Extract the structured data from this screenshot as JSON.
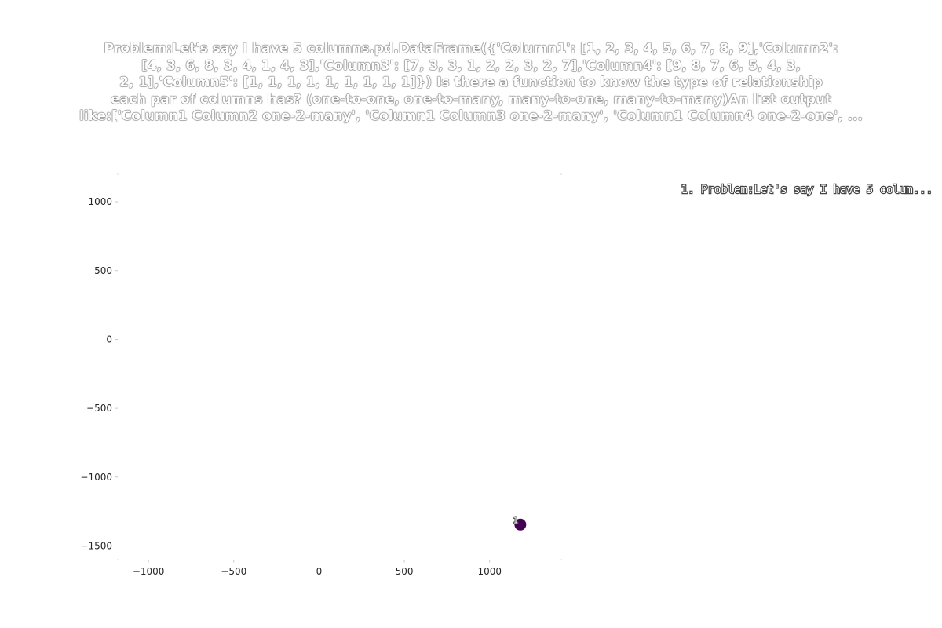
{
  "chart_data": {
    "type": "scatter",
    "title_lines": [
      "Problem:Let's say I have 5 columns.pd.DataFrame({'Column1': [1, 2, 3, 4, 5, 6, 7, 8, 9],'Column2':",
      "[4, 3, 6, 8, 3, 4, 1, 4, 3],'Column3': [7, 3, 3, 1, 2, 2, 3, 2, 7],'Column4': [9, 8, 7, 6, 5, 4, 3,",
      "2, 1],'Column5': [1, 1, 1, 1, 1, 1, 1, 1, 1]}) Is there a function to know the type of relationship",
      "each par of columns has? (one-to-one, one-to-many, many-to-one, many-to-many)An list output",
      "like:['Column1 Column2 one-2-many', 'Column1 Column3 one-2-many', 'Column1 Column4 one-2-one', ..."
    ],
    "xlabel": "",
    "ylabel": "",
    "xlim": [
      -1180,
      1420
    ],
    "ylim": [
      -1600,
      1200
    ],
    "xticks": [
      -1000,
      -500,
      0,
      500,
      1000
    ],
    "xtick_labels": [
      "−1000",
      "−500",
      "0",
      "500",
      "1000"
    ],
    "yticks": [
      1000,
      500,
      0,
      -500,
      -1000,
      -1500
    ],
    "ytick_labels": [
      "1000",
      "500",
      "0",
      "−500",
      "−1000",
      "−1500"
    ],
    "grid": false,
    "legend_placement": "top-right",
    "points": [
      {
        "x": 1180,
        "y": -1345,
        "label": "1",
        "color": "#440154"
      }
    ],
    "legend": [
      {
        "text": "1. Problem:Let's say I have 5 colum..."
      }
    ]
  }
}
